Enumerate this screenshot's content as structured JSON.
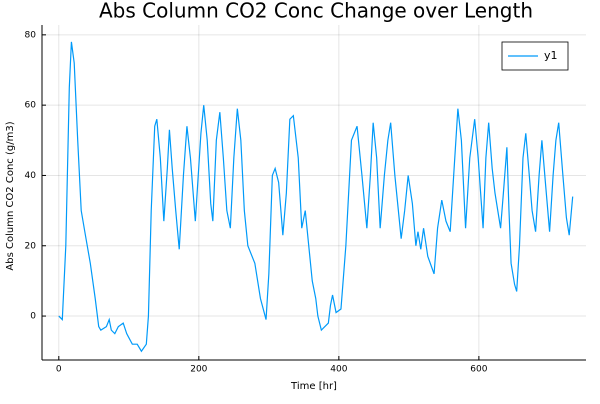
{
  "chart_data": {
    "type": "line",
    "title": "Abs Column CO2 Conc Change over Length",
    "x_label": "Time [hr]",
    "y_label": "Abs Column CO2 Conc (g/m3)",
    "xlim": [
      -24,
      753
    ],
    "ylim": [
      -12.5,
      82.8
    ],
    "xticks": [
      0,
      200,
      400,
      600
    ],
    "yticks": [
      0,
      20,
      40,
      60,
      80
    ],
    "grid": true,
    "legend": "top-right",
    "x": [
      0,
      5,
      10,
      15,
      18,
      22,
      27,
      32,
      38,
      45,
      52,
      57,
      60,
      68,
      72,
      75,
      80,
      85,
      92,
      97,
      105,
      112,
      118,
      125,
      128,
      132,
      137,
      140,
      145,
      150,
      155,
      158,
      162,
      167,
      172,
      178,
      183,
      188,
      195,
      203,
      207,
      212,
      217,
      220,
      225,
      230,
      235,
      240,
      245,
      250,
      255,
      260,
      265,
      270,
      280,
      288,
      296,
      300,
      305,
      309,
      314,
      320,
      325,
      330,
      335,
      342,
      347,
      352,
      358,
      362,
      367,
      370,
      375,
      380,
      385,
      388,
      391,
      396,
      403,
      410,
      418,
      426,
      433,
      440,
      445,
      449,
      454,
      459,
      465,
      470,
      474,
      480,
      489,
      494,
      499,
      505,
      510,
      513,
      517,
      521,
      527,
      536,
      541,
      547,
      553,
      559,
      564,
      570,
      575,
      581,
      587,
      594,
      599,
      606,
      610,
      614,
      619,
      623,
      627,
      631,
      635,
      640,
      643,
      646,
      651,
      654,
      658,
      663,
      667,
      672,
      676,
      681,
      686,
      690,
      695,
      701,
      706,
      710,
      714,
      720,
      725,
      729,
      734
    ],
    "series": [
      {
        "name": "y1",
        "color": "#009af9",
        "values": [
          0,
          -1,
          20,
          65,
          78,
          72,
          50,
          30,
          23,
          15,
          5,
          -3,
          -4,
          -3,
          -1,
          -4,
          -5,
          -3,
          -2,
          -5,
          -8,
          -8,
          -10,
          -8,
          0,
          30,
          54,
          56,
          45,
          27,
          42,
          53,
          42,
          30,
          19,
          40,
          54,
          45,
          27,
          52,
          60,
          50,
          32,
          27,
          50,
          58,
          45,
          30,
          25,
          45,
          59,
          50,
          30,
          20,
          15,
          5,
          -1,
          12,
          40,
          42,
          38,
          23,
          35,
          56,
          57,
          45,
          25,
          30,
          18,
          10,
          5,
          0,
          -4,
          -3,
          -2,
          3,
          6,
          1,
          2,
          20,
          50,
          54,
          40,
          25,
          40,
          55,
          45,
          25,
          40,
          50,
          55,
          40,
          22,
          30,
          40,
          32,
          20,
          24,
          19,
          25,
          17,
          12,
          25,
          33,
          27,
          24,
          40,
          59,
          50,
          25,
          45,
          56,
          45,
          25,
          45,
          55,
          42,
          35,
          30,
          25,
          35,
          48,
          30,
          15,
          9,
          7,
          20,
          45,
          52,
          40,
          30,
          24,
          40,
          50,
          38,
          24,
          40,
          50,
          55,
          40,
          28,
          23,
          34
        ]
      }
    ]
  }
}
